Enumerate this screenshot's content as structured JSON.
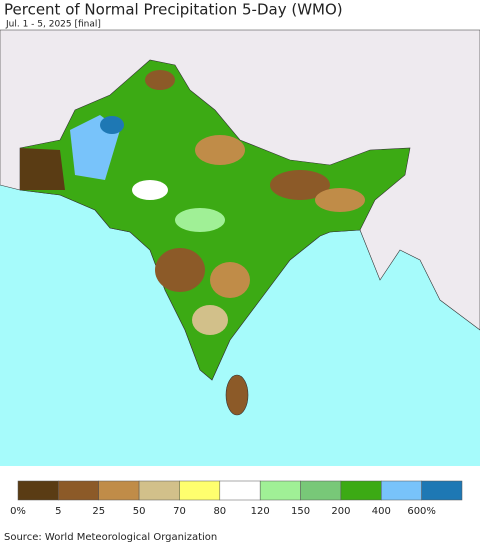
{
  "header": {
    "title": "Percent of Normal Precipitation 5-Day (WMO)",
    "subtitle": "Jul. 1 - 5, 2025 [final]"
  },
  "legend": {
    "colors": [
      "#5a3c14",
      "#8c5a28",
      "#c08c48",
      "#d2c08a",
      "#ffff6e",
      "#ffffff",
      "#a0f096",
      "#78c878",
      "#3caa14",
      "#78c3fa",
      "#1e78b4"
    ],
    "labels": [
      "0%",
      "5",
      "25",
      "50",
      "70",
      "80",
      "120",
      "150",
      "200",
      "400",
      "600%"
    ]
  },
  "source": "Source: World Meteorological Organization"
}
